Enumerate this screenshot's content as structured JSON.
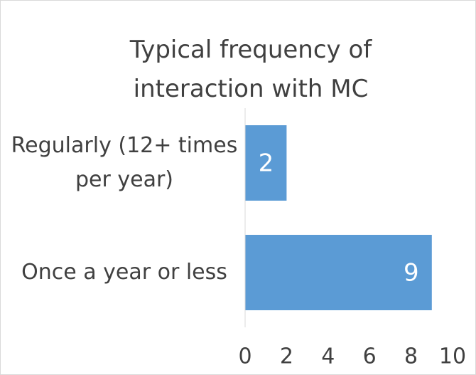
{
  "chart_data": {
    "type": "bar",
    "orientation": "horizontal",
    "title": "Typical frequency of interaction with MC",
    "categories": [
      "Regularly (12+ times per year)",
      "Once a year or less"
    ],
    "values": [
      2,
      9
    ],
    "color": "#5b9bd5",
    "xlim": [
      0,
      10
    ],
    "xticks": [
      0,
      2,
      4,
      6,
      8,
      10
    ],
    "grid": false
  }
}
